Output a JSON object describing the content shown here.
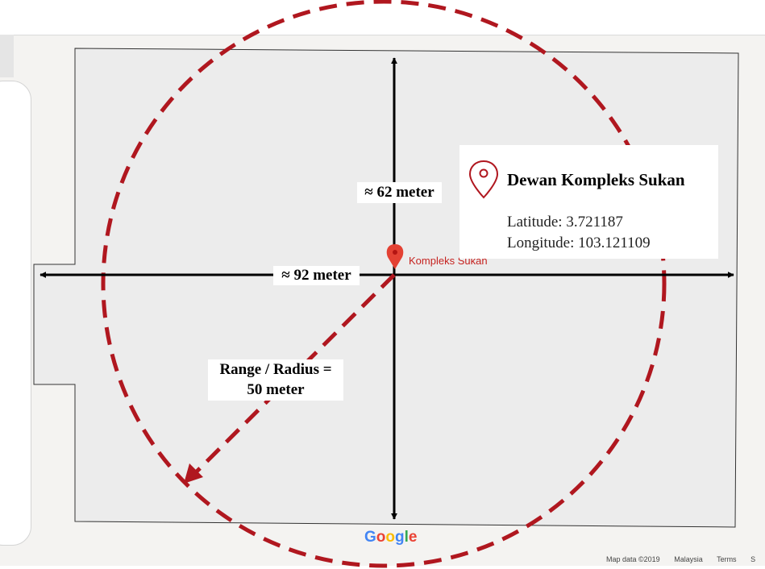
{
  "map": {
    "place_label": "Kompleks Sukan",
    "google_logo": [
      "G",
      "o",
      "o",
      "g",
      "l",
      "e"
    ],
    "attribution": {
      "map_data": "Map data ©2019",
      "region": "Malaysia",
      "terms": "Terms",
      "extra": "S"
    }
  },
  "info_card": {
    "title": "Dewan Kompleks Sukan",
    "latitude": "Latitude: 3.721187",
    "longitude": "Longitude: 103.121109"
  },
  "annotations": {
    "height_label": "≈ 62 meter",
    "width_label": "≈ 92 meter",
    "radius_line1": "Range / Radius =",
    "radius_line2": "50 meter"
  },
  "colors": {
    "circle": "#b0171f",
    "building_fill": "#ececec",
    "arrow": "#000000",
    "pin": "#e34133",
    "google": [
      "#4285f4",
      "#ea4335",
      "#fbbc05",
      "#4285f4",
      "#34a853",
      "#ea4335"
    ]
  },
  "icons": {
    "pin": "map-pin-icon",
    "pin_outline": "location-outline-icon"
  }
}
